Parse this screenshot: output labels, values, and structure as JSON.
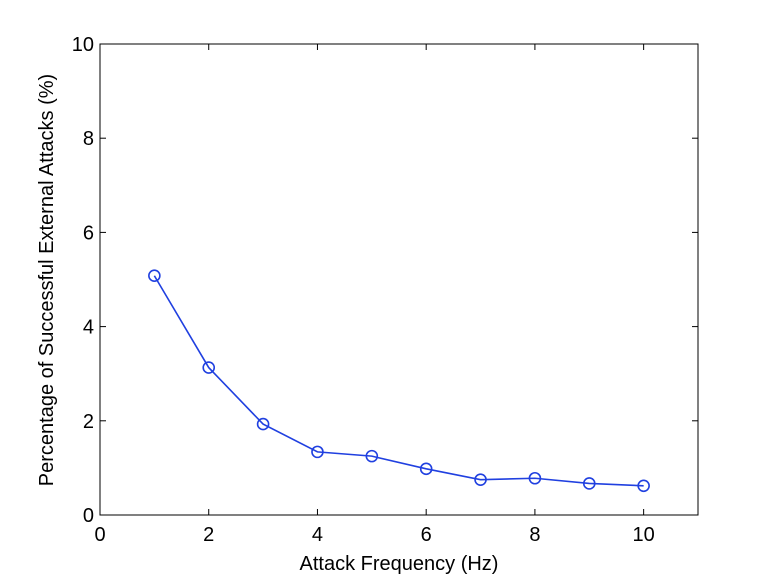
{
  "chart_data": {
    "type": "line",
    "xlabel": "Attack Frequency (Hz)",
    "ylabel": "Percentage of Successful External Attacks (%)",
    "xlim": [
      0,
      11
    ],
    "ylim": [
      0,
      10
    ],
    "x_ticks": [
      0,
      2,
      4,
      6,
      8,
      10
    ],
    "y_ticks": [
      0,
      2,
      4,
      6,
      8,
      10
    ],
    "grid": false,
    "series": [
      {
        "color": "#2040e0",
        "marker": "circle-open",
        "x": [
          1,
          2,
          3,
          4,
          5,
          6,
          7,
          8,
          9,
          10
        ],
        "y": [
          5.08,
          3.13,
          1.93,
          1.34,
          1.25,
          0.98,
          0.75,
          0.78,
          0.67,
          0.62
        ]
      }
    ]
  }
}
